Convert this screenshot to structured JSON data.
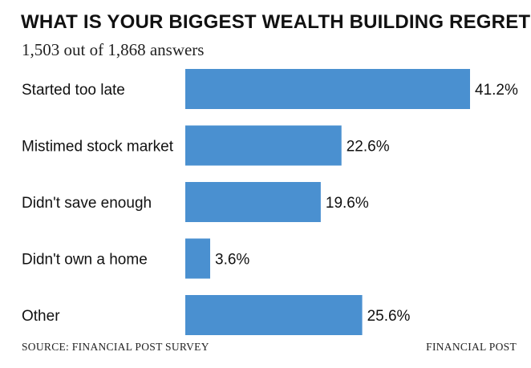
{
  "chart_data": {
    "type": "bar",
    "orientation": "horizontal",
    "title": "WHAT IS YOUR BIGGEST WEALTH BUILDING REGRET?",
    "subtitle": "1,503 out of 1,868 answers",
    "categories": [
      "Started too late",
      "Mistimed stock market",
      "Didn't save enough",
      "Didn't own a home",
      "Other"
    ],
    "values": [
      41.2,
      22.6,
      19.6,
      3.6,
      25.6
    ],
    "value_labels": [
      "41.2%",
      "22.6%",
      "19.6%",
      "3.6%",
      "25.6%"
    ],
    "unit": "%",
    "xlim": [
      0,
      41.2
    ],
    "grid": false,
    "legend": "none",
    "bar_color": "#4a90d0"
  },
  "footer": {
    "source": "SOURCE: FINANCIAL POST SURVEY",
    "brand": "FINANCIAL POST"
  }
}
